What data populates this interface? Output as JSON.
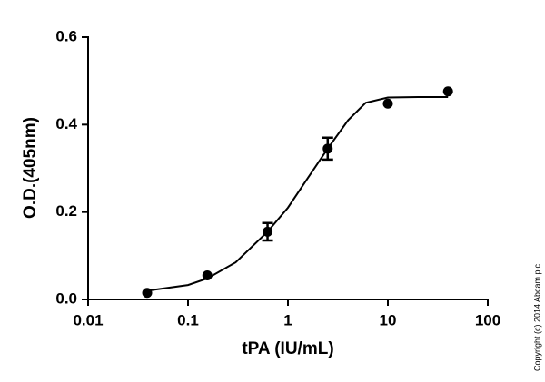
{
  "chart_data": {
    "type": "scatter",
    "xlabel": "tPA (IU/mL)",
    "ylabel": "O.D.(405nm)",
    "xscale": "log",
    "xlim": [
      0.01,
      100
    ],
    "xticks": [
      0.01,
      0.1,
      1,
      10,
      100
    ],
    "ylim": [
      0,
      0.6
    ],
    "yticks": [
      {
        "value": 0,
        "label": "0.0"
      },
      0.2,
      0.4,
      0.6
    ],
    "series": [
      {
        "color": "#000000",
        "x": [
          0.039,
          0.156,
          0.625,
          2.5,
          10,
          40
        ],
        "values": [
          0.015,
          0.055,
          0.155,
          0.345,
          0.448,
          0.476
        ],
        "errors": [
          null,
          null,
          0.02,
          0.025,
          null,
          null
        ]
      },
      {
        "type": "line",
        "color": "#000000",
        "x": [
          0.039,
          0.1,
          0.156,
          0.3,
          0.625,
          1,
          1.5,
          2.5,
          4,
          6,
          10,
          20,
          40
        ],
        "values": [
          0.02,
          0.033,
          0.048,
          0.085,
          0.155,
          0.21,
          0.27,
          0.345,
          0.41,
          0.45,
          0.462,
          0.463,
          0.463
        ]
      }
    ],
    "note": "Copyright (c) 2014 Abcam plc"
  }
}
